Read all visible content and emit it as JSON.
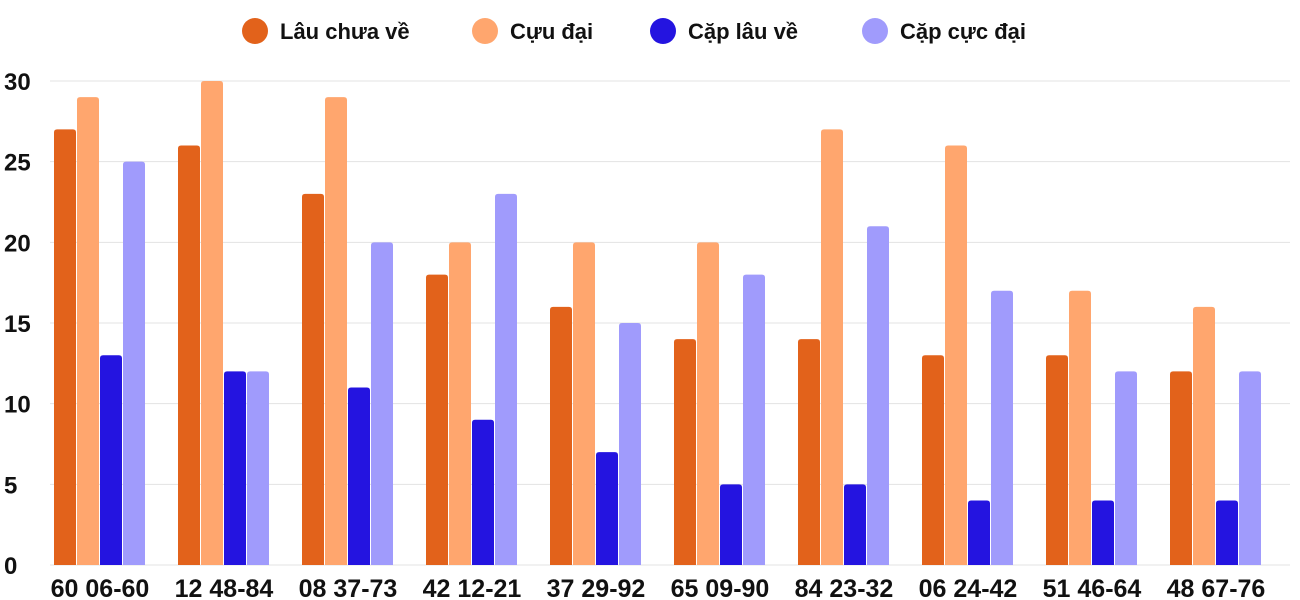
{
  "chart_data": {
    "type": "bar",
    "categories": [
      "60 06-60",
      "12 48-84",
      "08 37-73",
      "42 12-21",
      "37 29-92",
      "65 09-90",
      "84 23-32",
      "06 24-42",
      "51 46-64",
      "48 67-76"
    ],
    "series": [
      {
        "name": "Lâu chưa về",
        "color": "#e2621b",
        "values": [
          27,
          26,
          23,
          18,
          16,
          14,
          14,
          13,
          13,
          12
        ]
      },
      {
        "name": "Cựu đại",
        "color": "#ffa66e",
        "values": [
          29,
          30,
          29,
          20,
          20,
          20,
          27,
          26,
          17,
          16
        ]
      },
      {
        "name": "Cặp lâu về",
        "color": "#2414e0",
        "values": [
          13,
          12,
          11,
          9,
          7,
          5,
          5,
          4,
          4,
          4
        ]
      },
      {
        "name": "Cặp cực đại",
        "color": "#a09bfc",
        "values": [
          25,
          12,
          20,
          23,
          15,
          18,
          21,
          17,
          12,
          12
        ]
      }
    ],
    "yticks": [
      "0",
      "5",
      "10",
      "15",
      "20",
      "25",
      "30"
    ],
    "ylim": [
      0,
      30
    ],
    "grid": true,
    "legend_position": "top"
  }
}
